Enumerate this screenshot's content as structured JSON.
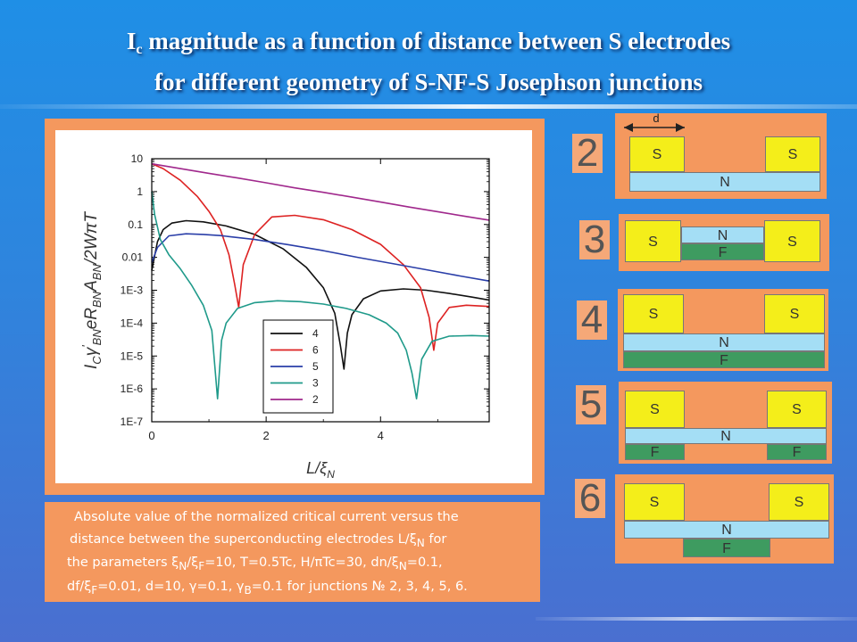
{
  "slide": {
    "title_line1_main": "I",
    "title_line1_sub": "c",
    "title_line1_rest": " magnitude as a function of distance between S electrodes",
    "title_line2": "for different geometry of S-NF-S Josephson junctions"
  },
  "caption_lines": [
    "Absolute value of the normalized critical current versus the",
    "distance between the superconducting electrodes L/ξ",
    "the parameters ξ",
    "df/ξ"
  ],
  "caption_parts": {
    "l2_sub": "N",
    "l2_end": " for",
    "l3_sub1": "N",
    "l3_mid1": "/ξ",
    "l3_sub2": "F",
    "l3_mid2": "=10, T=0.5Tc,  H/πTc=30, dn/ξ",
    "l3_sub3": "N",
    "l3_end": "=0.1,",
    "l4_sub1": "F",
    "l4_mid1": "=0.01, d=10, γ=0.1, γ",
    "l4_sub2": "B",
    "l4_end": "=0.1 for junctions № 2, 3, 4, 5, 6."
  },
  "geometry_panels": {
    "d_label": "d",
    "numbers": [
      "2",
      "3",
      "4",
      "5",
      "6"
    ],
    "labels": {
      "S": "S",
      "N": "N",
      "F": "F"
    },
    "colors": {
      "S": "#f4ee1a",
      "N": "#a4def5",
      "F": "#3e9b60",
      "background": "#f4985e"
    }
  },
  "chart_data": {
    "type": "line",
    "xlabel": "L/ξN",
    "ylabel": "I_C γ'_BN e R_BN A_BN / 2W πT",
    "y_scale": "log",
    "xlim": [
      0,
      5.9
    ],
    "ylim": [
      1e-07,
      10
    ],
    "x_ticks": [
      0,
      2,
      4
    ],
    "y_ticks": [
      10,
      1,
      0.1,
      0.01,
      0.001,
      0.0001,
      1e-05,
      1e-06,
      1e-07
    ],
    "y_tick_labels": [
      "10",
      "1",
      "0.1",
      "0.01",
      "1E-3",
      "1E-4",
      "1E-5",
      "1E-6",
      "1E-7"
    ],
    "x_tick_labels": [
      "0",
      "2",
      "4"
    ],
    "legend_position": "bottom-center",
    "series": [
      {
        "name": "4",
        "color": "#111111",
        "x": [
          0.0,
          0.1,
          0.2,
          0.35,
          0.6,
          0.9,
          1.3,
          1.8,
          2.3,
          2.7,
          3.0,
          3.2,
          3.3,
          3.36,
          3.42,
          3.5,
          3.7,
          4.0,
          4.4,
          4.8,
          5.2,
          5.6,
          5.9
        ],
        "y": [
          0.004,
          0.03,
          0.07,
          0.11,
          0.13,
          0.12,
          0.09,
          0.05,
          0.018,
          0.005,
          0.0012,
          0.0002,
          2e-05,
          4e-06,
          5e-05,
          0.00018,
          0.00055,
          0.00095,
          0.0011,
          0.001,
          0.0008,
          0.00062,
          0.0005
        ]
      },
      {
        "name": "6",
        "color": "#dd2222",
        "x": [
          0.0,
          0.2,
          0.5,
          0.8,
          1.0,
          1.2,
          1.35,
          1.45,
          1.52,
          1.6,
          1.8,
          2.1,
          2.5,
          3.0,
          3.5,
          4.0,
          4.4,
          4.7,
          4.85,
          4.93,
          5.0,
          5.2,
          5.5,
          5.9
        ],
        "y": [
          7.0,
          5.0,
          2.2,
          0.7,
          0.25,
          0.07,
          0.012,
          0.0015,
          0.0003,
          0.006,
          0.05,
          0.17,
          0.19,
          0.14,
          0.07,
          0.025,
          0.006,
          0.0012,
          0.00015,
          1.5e-05,
          0.0001,
          0.0003,
          0.00035,
          0.00032
        ]
      },
      {
        "name": "5",
        "color": "#2a3ea8",
        "x": [
          0.0,
          0.1,
          0.3,
          0.6,
          0.9,
          1.2,
          1.8,
          2.4,
          3.0,
          3.6,
          4.2,
          4.8,
          5.4,
          5.9
        ],
        "y": [
          0.007,
          0.02,
          0.045,
          0.052,
          0.05,
          0.046,
          0.035,
          0.024,
          0.016,
          0.01,
          0.0065,
          0.0042,
          0.0027,
          0.0019
        ]
      },
      {
        "name": "3",
        "color": "#1f9a8a",
        "x": [
          0.0,
          0.05,
          0.15,
          0.3,
          0.5,
          0.7,
          0.9,
          1.05,
          1.15,
          1.22,
          1.3,
          1.5,
          1.8,
          2.2,
          2.6,
          3.0,
          3.4,
          3.8,
          4.1,
          4.3,
          4.45,
          4.55,
          4.63,
          4.72,
          4.9,
          5.2,
          5.6,
          5.9
        ],
        "y": [
          1.0,
          0.2,
          0.035,
          0.012,
          0.0045,
          0.0014,
          0.00035,
          6e-05,
          5e-07,
          3e-05,
          0.0001,
          0.00028,
          0.00042,
          0.00048,
          0.00045,
          0.00038,
          0.00028,
          0.00018,
          0.0001,
          5e-05,
          1.5e-05,
          3e-06,
          5e-07,
          8e-06,
          2.8e-05,
          4e-05,
          4.2e-05,
          4e-05
        ]
      },
      {
        "name": "2",
        "color": "#a0288c",
        "x": [
          0.0,
          0.5,
          1.0,
          1.5,
          2.0,
          2.5,
          3.0,
          3.5,
          4.0,
          4.5,
          5.0,
          5.5,
          5.9
        ],
        "y": [
          7.0,
          5.0,
          3.6,
          2.6,
          1.85,
          1.3,
          0.95,
          0.68,
          0.48,
          0.34,
          0.245,
          0.175,
          0.135
        ]
      }
    ]
  }
}
